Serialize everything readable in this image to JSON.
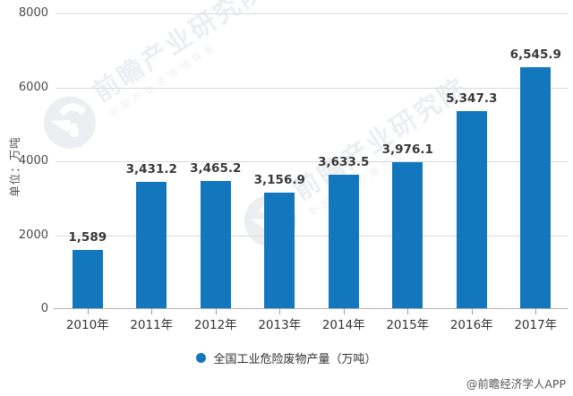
{
  "chart": {
    "unit_label": "单位：万吨",
    "y_ticks": [
      "8000",
      "6000",
      "4000",
      "2000",
      "0"
    ],
    "legend_label": "全国工业危险废物产量（万吨）",
    "attribution": "@前瞻经济学人APP",
    "watermark": {
      "title": "前瞻产业研究院",
      "subtitle": "中国产业咨询领导者"
    },
    "colors": {
      "bar": "#1377be",
      "grid": "#d9d9d9",
      "axis": "#b0b0b0",
      "data_label": "#383838"
    }
  },
  "chart_data": {
    "type": "bar",
    "categories": [
      "2010年",
      "2011年",
      "2012年",
      "2013年",
      "2014年",
      "2015年",
      "2016年",
      "2017年"
    ],
    "values": [
      1589,
      3431.2,
      3465.2,
      3156.9,
      3633.5,
      3976.1,
      5347.3,
      6545.9
    ],
    "value_labels": [
      "1,589",
      "3,431.2",
      "3,465.2",
      "3,156.9",
      "3,633.5",
      "3,976.1",
      "5,347.3",
      "6,545.9"
    ],
    "series_name": "全国工业危险废物产量（万吨）",
    "title": "",
    "xlabel": "",
    "ylabel": "单位：万吨",
    "ylim": [
      0,
      8000
    ],
    "grid": true,
    "legend_position": "bottom"
  }
}
